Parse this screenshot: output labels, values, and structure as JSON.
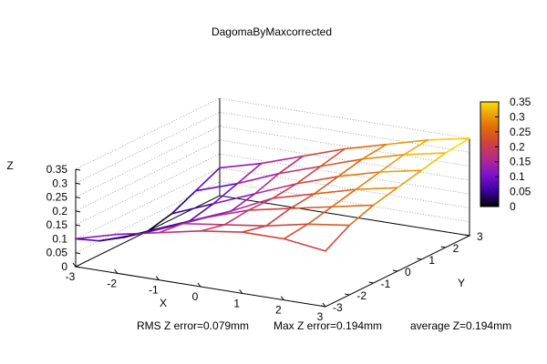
{
  "chart_data": {
    "type": "surface3d",
    "title": "DagomaByMaxcorrected",
    "xlabel": "X",
    "ylabel": "Y",
    "zlabel": "Z",
    "x_ticks": [
      -3,
      -2,
      -1,
      0,
      1,
      2,
      3
    ],
    "y_ticks": [
      -3,
      -2,
      -1,
      0,
      1,
      2,
      3
    ],
    "z_ticks": [
      0,
      0.05,
      0.1,
      0.15,
      0.2,
      0.25,
      0.3,
      0.35
    ],
    "xlim": [
      -3,
      3
    ],
    "ylim": [
      -3,
      3
    ],
    "zlim": [
      0,
      0.35
    ],
    "colorbar": {
      "ticks": [
        0,
        0.05,
        0.1,
        0.15,
        0.2,
        0.25,
        0.3,
        0.35
      ],
      "range": [
        0,
        0.35
      ],
      "palette": [
        "#000000",
        "#5a00d0",
        "#9c1ab8",
        "#c83a5a",
        "#d8580a",
        "#e8900a",
        "#ffe000"
      ]
    },
    "grid": true,
    "x": [
      -3,
      -2,
      -1,
      0,
      1,
      2,
      3
    ],
    "y": [
      -3,
      -2,
      -1,
      0,
      1,
      2,
      3
    ],
    "z": [
      [
        0.1,
        0.14,
        0.17,
        0.2,
        0.22,
        0.22,
        0.2
      ],
      [
        0.05,
        0.1,
        0.16,
        0.18,
        0.2,
        0.23,
        0.25
      ],
      [
        0.02,
        0.08,
        0.14,
        0.19,
        0.22,
        0.25,
        0.28
      ],
      [
        0.0,
        0.06,
        0.12,
        0.19,
        0.23,
        0.27,
        0.3
      ],
      [
        0.02,
        0.08,
        0.14,
        0.2,
        0.25,
        0.29,
        0.32
      ],
      [
        0.06,
        0.11,
        0.17,
        0.22,
        0.27,
        0.31,
        0.34
      ],
      [
        0.1,
        0.14,
        0.19,
        0.24,
        0.28,
        0.32,
        0.35
      ]
    ]
  },
  "footer": {
    "rms": "RMS Z error=0.079mm",
    "max": "Max Z error=0.194mm",
    "avg": "average Z=0.194mm"
  }
}
